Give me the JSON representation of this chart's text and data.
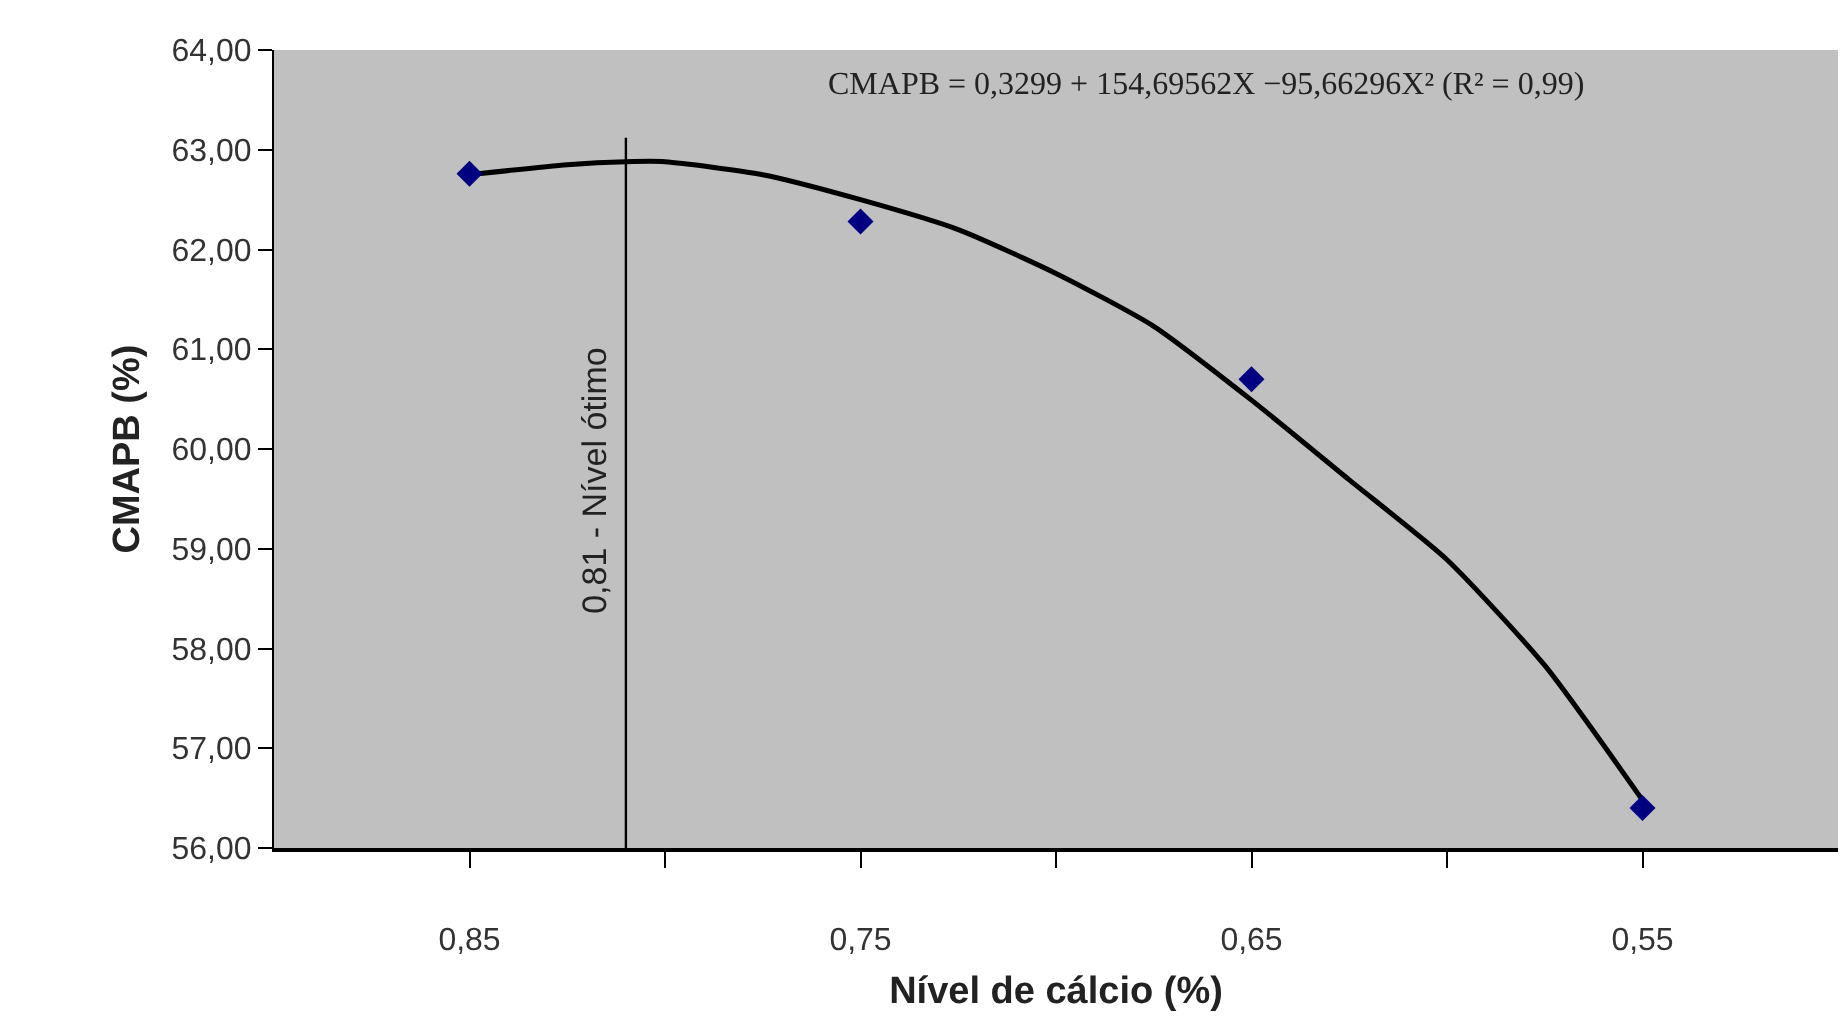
{
  "chart_data": {
    "type": "scatter",
    "xlabel": "Nível de cálcio (%)",
    "ylabel": "CMAPB (%)",
    "x": [
      0.85,
      0.75,
      0.65,
      0.55
    ],
    "series": [
      {
        "color": "#000080",
        "marker": "diamond",
        "values": [
          62.76,
          62.28,
          60.7,
          56.4
        ]
      },
      {
        "type": "line",
        "color": "#000000",
        "marker": "none",
        "x": [
          0.85,
          0.825,
          0.81,
          0.8,
          0.775,
          0.75,
          0.725,
          0.7,
          0.675,
          0.65,
          0.625,
          0.6,
          0.575,
          0.55
        ],
        "values": [
          62.75,
          62.85,
          62.88,
          62.88,
          62.75,
          62.5,
          62.2,
          61.76,
          61.23,
          60.49,
          59.69,
          58.89,
          57.83,
          56.48
        ]
      }
    ],
    "xlim": [
      0.9,
      0.5
    ],
    "xticks": [
      {
        "value": 0.85,
        "label": "0,85"
      },
      {
        "value": 0.8,
        "label": null
      },
      {
        "value": 0.75,
        "label": "0,75"
      },
      {
        "value": 0.7,
        "label": null
      },
      {
        "value": 0.65,
        "label": "0,65"
      },
      {
        "value": 0.6,
        "label": null
      },
      {
        "value": 0.55,
        "label": "0,55"
      }
    ],
    "ylim": [
      56,
      64
    ],
    "yticks": [
      {
        "value": 56,
        "label": "56,00"
      },
      {
        "value": 57,
        "label": "57,00"
      },
      {
        "value": 58,
        "label": "58,00"
      },
      {
        "value": 59,
        "label": "59,00"
      },
      {
        "value": 60,
        "label": "60,00"
      },
      {
        "value": 61,
        "label": "61,00"
      },
      {
        "value": 62,
        "label": "62,00"
      },
      {
        "value": 63,
        "label": "63,00"
      },
      {
        "value": 64,
        "label": "64,00"
      }
    ],
    "ref_lines": [
      {
        "axis": "x",
        "value": 0.81,
        "label": "0,81 - Nível ótimo",
        "color": "#000000"
      }
    ],
    "annotations": [
      "CMAPB = 0,3299 + 154,69562X −95,66296X² (R² = 0,99)"
    ],
    "grid": false
  }
}
